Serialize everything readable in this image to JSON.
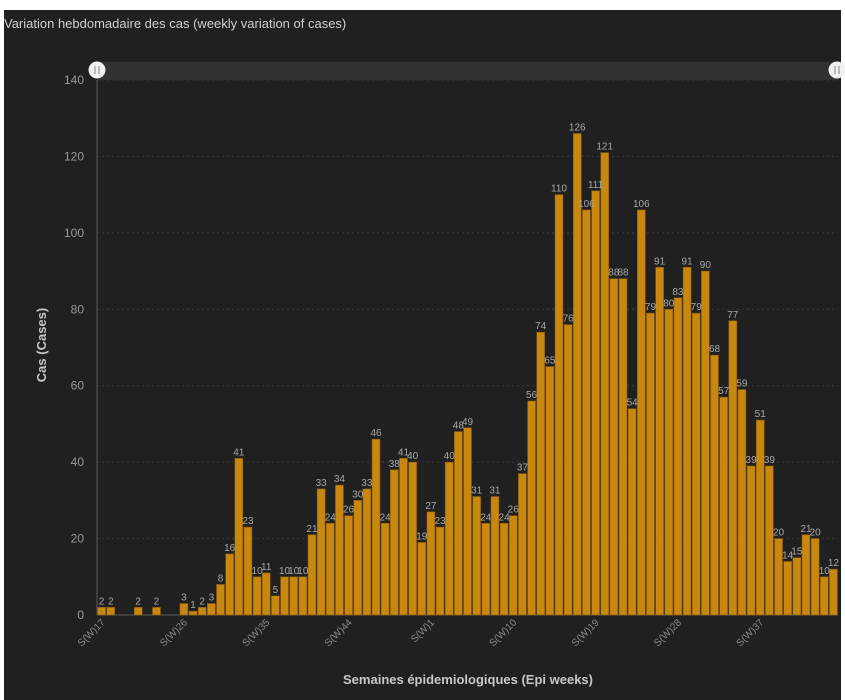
{
  "chart_data": {
    "type": "bar",
    "title": "Variation hebdomadaire des cas (weekly variation of cases)",
    "xlabel": "Semaines épidemiologiques (Epi weeks)",
    "ylabel": "Cas (Cases)",
    "ylim": [
      0,
      140
    ],
    "yticks": [
      0,
      20,
      40,
      60,
      80,
      100,
      120,
      140
    ],
    "xtick_labels": [
      "S(W)17",
      "S(W)26",
      "S(W)35",
      "S(W)44",
      "S(W)1",
      "S(W)10",
      "S(W)19",
      "S(W)28",
      "S(W)37"
    ],
    "grid": true,
    "color": "#c8870f",
    "values": [
      2,
      2,
      0,
      0,
      2,
      0,
      2,
      0,
      0,
      3,
      1,
      2,
      3,
      8,
      16,
      41,
      23,
      10,
      11,
      5,
      10,
      10,
      10,
      21,
      33,
      24,
      34,
      26,
      30,
      33,
      46,
      24,
      38,
      41,
      40,
      19,
      27,
      23,
      40,
      48,
      49,
      31,
      24,
      31,
      24,
      26,
      37,
      56,
      74,
      65,
      110,
      76,
      126,
      106,
      111,
      121,
      88,
      88,
      54,
      106,
      79,
      91,
      80,
      83,
      91,
      79,
      90,
      68,
      57,
      77,
      59,
      39,
      51,
      39,
      20,
      14,
      15,
      21,
      20,
      10,
      12
    ]
  }
}
